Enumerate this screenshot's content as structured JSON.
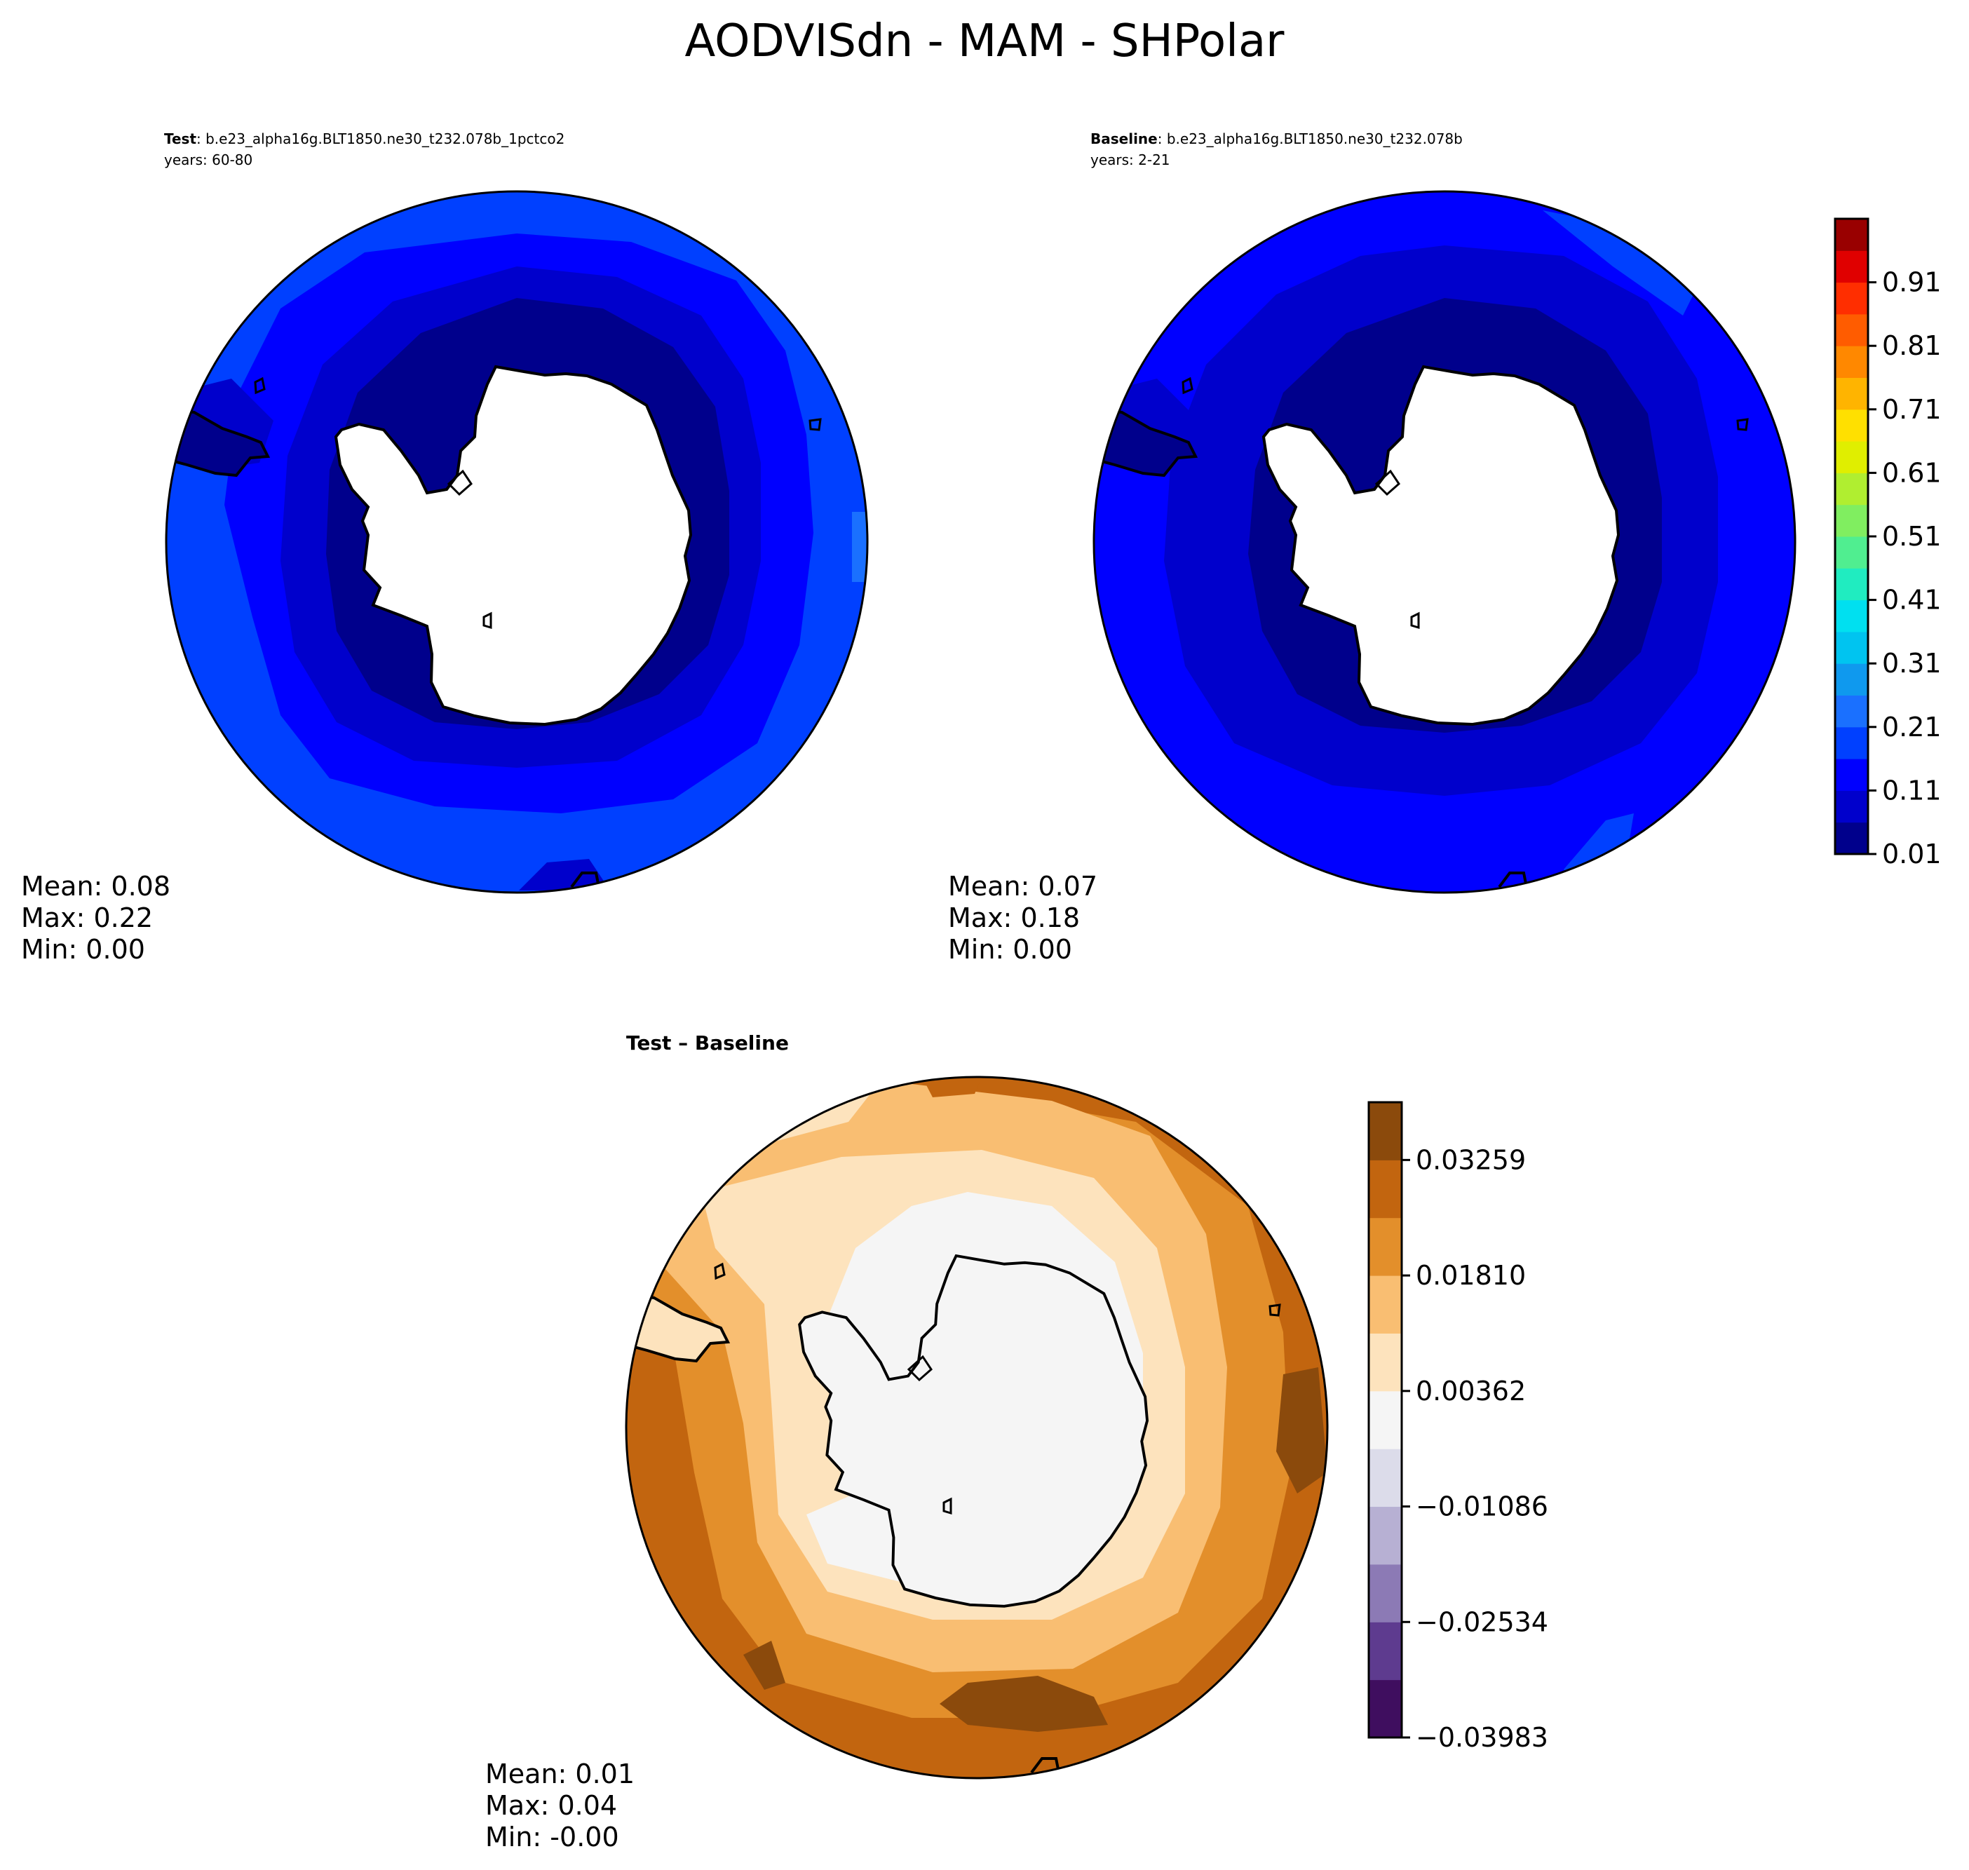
{
  "title": "AODVISdn - MAM - SHPolar",
  "test": {
    "label": "Test",
    "case": ": b.e23_alpha16g.BLT1850.ne30_t232.078b_1pctco2",
    "years": "years: 60-80",
    "stats": {
      "mean": "Mean:  0.08",
      "max": "Max:  0.22",
      "min": "Min:  0.00"
    }
  },
  "baseline": {
    "label": "Baseline",
    "case": ": b.e23_alpha16g.BLT1850.ne30_t232.078b",
    "years": "years: 2-21",
    "stats": {
      "mean": "Mean:  0.07",
      "max": "Max:  0.18",
      "min": "Min:  0.00"
    }
  },
  "diff": {
    "title": "Test – Baseline",
    "stats": {
      "mean": "Mean:  0.01",
      "max": "Max:  0.04",
      "min": "Min: -0.00"
    }
  },
  "chart_data": [
    {
      "type": "heatmap",
      "name": "Test",
      "projection": "south polar stereographic",
      "mean": 0.08,
      "max": 0.22,
      "min": 0.0,
      "rings": [
        {
          "band": [
            0.01,
            0.06
          ],
          "zone": "around Antarctica"
        },
        {
          "band": [
            0.06,
            0.11
          ],
          "zone": "inner ocean ring"
        },
        {
          "band": [
            0.11,
            0.16
          ],
          "zone": "mid ocean ring"
        },
        {
          "band": [
            0.16,
            0.21
          ],
          "zone": "outer ocean ring"
        }
      ]
    },
    {
      "type": "heatmap",
      "name": "Baseline",
      "projection": "south polar stereographic",
      "mean": 0.07,
      "max": 0.18,
      "min": 0.0,
      "rings": [
        {
          "band": [
            0.01,
            0.06
          ],
          "zone": "around Antarctica"
        },
        {
          "band": [
            0.06,
            0.11
          ],
          "zone": "inner ocean ring"
        },
        {
          "band": [
            0.11,
            0.16
          ],
          "zone": "mid ocean ring"
        },
        {
          "band": [
            0.16,
            0.21
          ],
          "zone": "outer edges"
        }
      ]
    },
    {
      "type": "heatmap",
      "name": "Test – Baseline",
      "projection": "south polar stereographic",
      "mean": 0.01,
      "max": 0.04,
      "min": -0.0,
      "rings": [
        {
          "band": [
            -0.00362,
            0.00362
          ],
          "zone": "around Antarctica"
        },
        {
          "band": [
            0.00362,
            0.01086
          ],
          "zone": "inner ring"
        },
        {
          "band": [
            0.01086,
            0.0181
          ],
          "zone": "mid ring"
        },
        {
          "band": [
            0.0181,
            0.02534
          ],
          "zone": "outer ring"
        },
        {
          "band": [
            0.02534,
            0.03259
          ],
          "zone": "outer edges"
        },
        {
          "band": [
            0.03259,
            0.03983
          ],
          "zone": "patches near rim"
        }
      ]
    }
  ],
  "colorbar_main": {
    "ticks": [
      "0.01",
      "0.11",
      "0.21",
      "0.31",
      "0.41",
      "0.51",
      "0.61",
      "0.71",
      "0.81",
      "0.91"
    ],
    "colors": [
      "#00008c",
      "#0000cc",
      "#0000ff",
      "#0040ff",
      "#1a70ff",
      "#0f99ee",
      "#00c4f0",
      "#00e0f0",
      "#20ecc0",
      "#50ee90",
      "#80ee60",
      "#b0ee30",
      "#e0ee00",
      "#ffe000",
      "#ffb400",
      "#ff8800",
      "#ff5c00",
      "#ff2e00",
      "#e00000",
      "#990000"
    ]
  },
  "colorbar_diff": {
    "ticks": [
      "−0.03983",
      "−0.02534",
      "−0.01086",
      "0.00362",
      "0.01810",
      "0.03259"
    ],
    "colors": [
      "#3f0e5f",
      "#5e3b8f",
      "#8c7ab5",
      "#b7b0d3",
      "#dcdcea",
      "#f5f5f5",
      "#fde3bd",
      "#f9be72",
      "#e38f2b",
      "#c2650f",
      "#8b4a0c"
    ]
  }
}
